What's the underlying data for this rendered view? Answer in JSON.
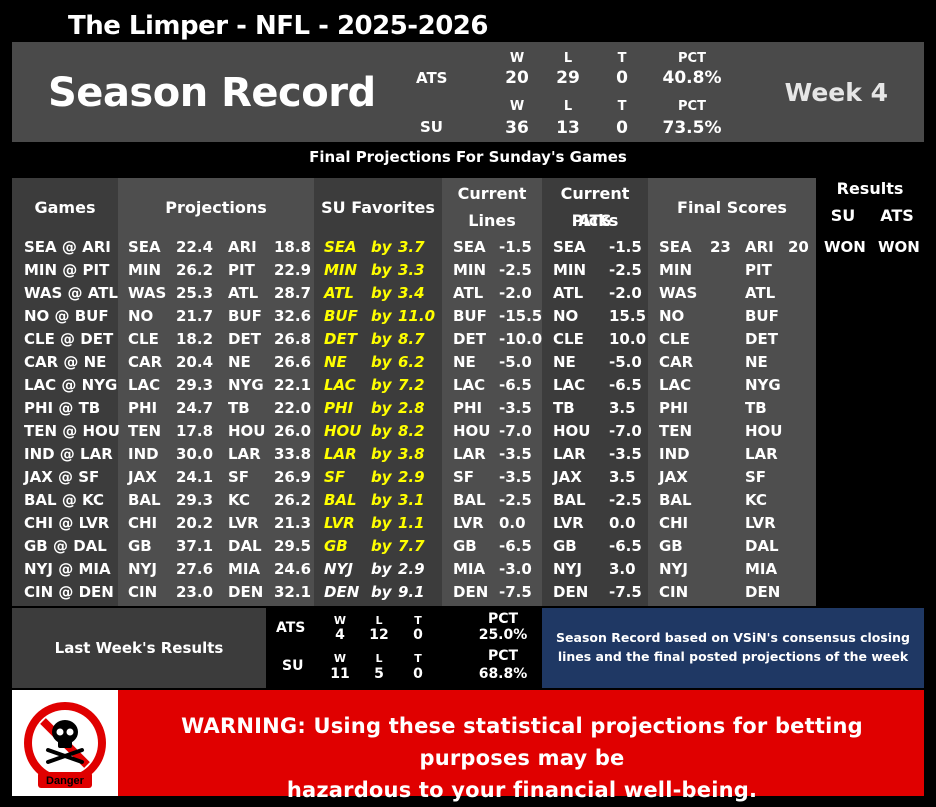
{
  "title": "The Limper - NFL - 2025-2026",
  "season": {
    "heading": "Season Record",
    "week": "Week 4",
    "labels": {
      "w": "W",
      "l": "L",
      "t": "T",
      "pct": "PCT"
    },
    "ats": {
      "label": "ATS",
      "w": "20",
      "l": "29",
      "t": "0",
      "pct": "40.8%"
    },
    "su": {
      "label": "SU",
      "w": "36",
      "l": "13",
      "t": "0",
      "pct": "73.5%"
    }
  },
  "subtitle": "Final Projections For Sunday's Games",
  "headers": {
    "games": "Games",
    "projections": "Projections",
    "su_favorites": "SU Favorites",
    "current_lines_1": "Current",
    "current_lines_2": "Lines",
    "ats_picks_1": "Current ATS",
    "ats_picks_2": "Picks",
    "final_scores": "Final Scores",
    "results": "Results",
    "su": "SU",
    "ats": "ATS"
  },
  "by_word": "by",
  "games": [
    {
      "game": "SEA @ ARI",
      "t1": "SEA",
      "s1": "22.4",
      "t2": "ARI",
      "s2": "18.8",
      "fav": "SEA",
      "margin": "3.7",
      "fav_yellow": true,
      "line_team": "SEA",
      "line": "-1.5",
      "pick_team": "SEA",
      "pick": "-1.5",
      "f1": "SEA",
      "fs1": "23",
      "f2": "ARI",
      "fs2": "20",
      "su": "WON",
      "ats": "WON"
    },
    {
      "game": "MIN @ PIT",
      "t1": "MIN",
      "s1": "26.2",
      "t2": "PIT",
      "s2": "22.9",
      "fav": "MIN",
      "margin": "3.3",
      "fav_yellow": true,
      "line_team": "MIN",
      "line": "-2.5",
      "pick_team": "MIN",
      "pick": "-2.5",
      "f1": "MIN",
      "fs1": "",
      "f2": "PIT",
      "fs2": "",
      "su": "",
      "ats": ""
    },
    {
      "game": "WAS @ ATL",
      "t1": "WAS",
      "s1": "25.3",
      "t2": "ATL",
      "s2": "28.7",
      "fav": "ATL",
      "margin": "3.4",
      "fav_yellow": true,
      "line_team": "ATL",
      "line": "-2.0",
      "pick_team": "ATL",
      "pick": "-2.0",
      "f1": "WAS",
      "fs1": "",
      "f2": "ATL",
      "fs2": "",
      "su": "",
      "ats": ""
    },
    {
      "game": "NO @ BUF",
      "t1": "NO",
      "s1": "21.7",
      "t2": "BUF",
      "s2": "32.6",
      "fav": "BUF",
      "margin": "11.0",
      "fav_yellow": true,
      "line_team": "BUF",
      "line": "-15.5",
      "pick_team": "NO",
      "pick": "15.5",
      "f1": "NO",
      "fs1": "",
      "f2": "BUF",
      "fs2": "",
      "su": "",
      "ats": ""
    },
    {
      "game": "CLE @ DET",
      "t1": "CLE",
      "s1": "18.2",
      "t2": "DET",
      "s2": "26.8",
      "fav": "DET",
      "margin": "8.7",
      "fav_yellow": true,
      "line_team": "DET",
      "line": "-10.0",
      "pick_team": "CLE",
      "pick": "10.0",
      "f1": "CLE",
      "fs1": "",
      "f2": "DET",
      "fs2": "",
      "su": "",
      "ats": ""
    },
    {
      "game": "CAR @ NE",
      "t1": "CAR",
      "s1": "20.4",
      "t2": "NE",
      "s2": "26.6",
      "fav": "NE",
      "margin": "6.2",
      "fav_yellow": true,
      "line_team": "NE",
      "line": "-5.0",
      "pick_team": "NE",
      "pick": "-5.0",
      "f1": "CAR",
      "fs1": "",
      "f2": "NE",
      "fs2": "",
      "su": "",
      "ats": ""
    },
    {
      "game": "LAC @ NYG",
      "t1": "LAC",
      "s1": "29.3",
      "t2": "NYG",
      "s2": "22.1",
      "fav": "LAC",
      "margin": "7.2",
      "fav_yellow": true,
      "line_team": "LAC",
      "line": "-6.5",
      "pick_team": "LAC",
      "pick": "-6.5",
      "f1": "LAC",
      "fs1": "",
      "f2": "NYG",
      "fs2": "",
      "su": "",
      "ats": ""
    },
    {
      "game": "PHI @ TB",
      "t1": "PHI",
      "s1": "24.7",
      "t2": "TB",
      "s2": "22.0",
      "fav": "PHI",
      "margin": "2.8",
      "fav_yellow": true,
      "line_team": "PHI",
      "line": "-3.5",
      "pick_team": "TB",
      "pick": "3.5",
      "f1": "PHI",
      "fs1": "",
      "f2": "TB",
      "fs2": "",
      "su": "",
      "ats": ""
    },
    {
      "game": "TEN @ HOU",
      "t1": "TEN",
      "s1": "17.8",
      "t2": "HOU",
      "s2": "26.0",
      "fav": "HOU",
      "margin": "8.2",
      "fav_yellow": true,
      "line_team": "HOU",
      "line": "-7.0",
      "pick_team": "HOU",
      "pick": "-7.0",
      "f1": "TEN",
      "fs1": "",
      "f2": "HOU",
      "fs2": "",
      "su": "",
      "ats": ""
    },
    {
      "game": "IND @ LAR",
      "t1": "IND",
      "s1": "30.0",
      "t2": "LAR",
      "s2": "33.8",
      "fav": "LAR",
      "margin": "3.8",
      "fav_yellow": true,
      "line_team": "LAR",
      "line": "-3.5",
      "pick_team": "LAR",
      "pick": "-3.5",
      "f1": "IND",
      "fs1": "",
      "f2": "LAR",
      "fs2": "",
      "su": "",
      "ats": ""
    },
    {
      "game": "JAX @ SF",
      "t1": "JAX",
      "s1": "24.1",
      "t2": "SF",
      "s2": "26.9",
      "fav": "SF",
      "margin": "2.9",
      "fav_yellow": true,
      "line_team": "SF",
      "line": "-3.5",
      "pick_team": "JAX",
      "pick": "3.5",
      "f1": "JAX",
      "fs1": "",
      "f2": "SF",
      "fs2": "",
      "su": "",
      "ats": ""
    },
    {
      "game": "BAL @ KC",
      "t1": "BAL",
      "s1": "29.3",
      "t2": "KC",
      "s2": "26.2",
      "fav": "BAL",
      "margin": "3.1",
      "fav_yellow": true,
      "line_team": "BAL",
      "line": "-2.5",
      "pick_team": "BAL",
      "pick": "-2.5",
      "f1": "BAL",
      "fs1": "",
      "f2": "KC",
      "fs2": "",
      "su": "",
      "ats": ""
    },
    {
      "game": "CHI @ LVR",
      "t1": "CHI",
      "s1": "20.2",
      "t2": "LVR",
      "s2": "21.3",
      "fav": "LVR",
      "margin": "1.1",
      "fav_yellow": true,
      "line_team": "LVR",
      "line": "0.0",
      "pick_team": "LVR",
      "pick": "0.0",
      "f1": "CHI",
      "fs1": "",
      "f2": "LVR",
      "fs2": "",
      "su": "",
      "ats": ""
    },
    {
      "game": "GB @ DAL",
      "t1": "GB",
      "s1": "37.1",
      "t2": "DAL",
      "s2": "29.5",
      "fav": "GB",
      "margin": "7.7",
      "fav_yellow": true,
      "line_team": "GB",
      "line": "-6.5",
      "pick_team": "GB",
      "pick": "-6.5",
      "f1": "GB",
      "fs1": "",
      "f2": "DAL",
      "fs2": "",
      "su": "",
      "ats": ""
    },
    {
      "game": "NYJ @ MIA",
      "t1": "NYJ",
      "s1": "27.6",
      "t2": "MIA",
      "s2": "24.6",
      "fav": "NYJ",
      "margin": "2.9",
      "fav_yellow": false,
      "line_team": "MIA",
      "line": "-3.0",
      "pick_team": "NYJ",
      "pick": "3.0",
      "f1": "NYJ",
      "fs1": "",
      "f2": "MIA",
      "fs2": "",
      "su": "",
      "ats": ""
    },
    {
      "game": "CIN @ DEN",
      "t1": "CIN",
      "s1": "23.0",
      "t2": "DEN",
      "s2": "32.1",
      "fav": "DEN",
      "margin": "9.1",
      "fav_yellow": false,
      "line_team": "DEN",
      "line": "-7.5",
      "pick_team": "DEN",
      "pick": "-7.5",
      "f1": "CIN",
      "fs1": "",
      "f2": "DEN",
      "fs2": "",
      "su": "",
      "ats": ""
    }
  ],
  "last_week": {
    "label": "Last Week's Results",
    "labels": {
      "w": "W",
      "l": "L",
      "t": "T",
      "pct": "PCT"
    },
    "ats": {
      "label": "ATS",
      "w": "4",
      "l": "12",
      "t": "0",
      "pct": "25.0%"
    },
    "su": {
      "label": "SU",
      "w": "11",
      "l": "5",
      "t": "0",
      "pct": "68.8%"
    }
  },
  "note_line1": "Season Record based on VSiN's consensus closing",
  "note_line2": "lines and the final posted projections of the week",
  "danger_label": "Danger",
  "warning_line1": "WARNING: Using these statistical projections for betting purposes may be",
  "warning_line2": "hazardous to your financial well-being.",
  "colors": {
    "favorite_text": "#ffff00",
    "warning_bg": "#e00000",
    "note_bg": "#1f3864"
  }
}
